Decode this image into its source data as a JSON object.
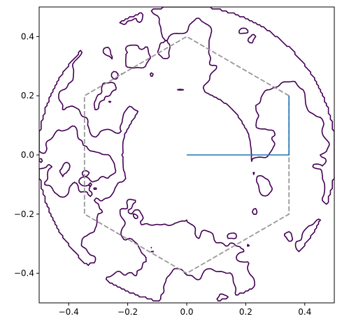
{
  "chart_data": {
    "type": "line",
    "title": "",
    "xlabel": "",
    "ylabel": "",
    "xlim": [
      -0.5,
      0.5
    ],
    "ylim": [
      -0.5,
      0.5
    ],
    "grid": false,
    "x_ticks": [
      -0.4,
      -0.2,
      0.0,
      0.2,
      0.4
    ],
    "y_ticks": [
      -0.4,
      -0.2,
      0.0,
      0.2,
      0.4
    ],
    "x_tick_labels": [
      "−0.4",
      "−0.2",
      "0.0",
      "0.2",
      "0.4"
    ],
    "y_tick_labels": [
      "−0.4",
      "−0.2",
      "0.0",
      "0.2",
      "0.4"
    ],
    "colors": {
      "contour": "#440154",
      "hexagon": "#999999",
      "path": "#1f77b4",
      "axes": "#000000"
    },
    "series": [
      {
        "style": "dashed",
        "color": "#999999",
        "x": [
          0.3464,
          0.0,
          -0.3464,
          -0.3464,
          0.0,
          0.3464,
          0.3464
        ],
        "y": [
          0.2,
          0.4,
          0.2,
          -0.2,
          -0.4,
          -0.2,
          0.2
        ]
      },
      {
        "style": "solid",
        "color": "#1f77b4",
        "x": [
          0.0,
          0.3464,
          0.3464
        ],
        "y": [
          0.0,
          0.0,
          0.2
        ]
      }
    ],
    "contours": {
      "color": "#440154",
      "style": "irregular level-set contour lines forming an annulus outside the hexagon",
      "inner_radius": 0.22,
      "outer_radius": 0.44,
      "seed": 17
    }
  }
}
